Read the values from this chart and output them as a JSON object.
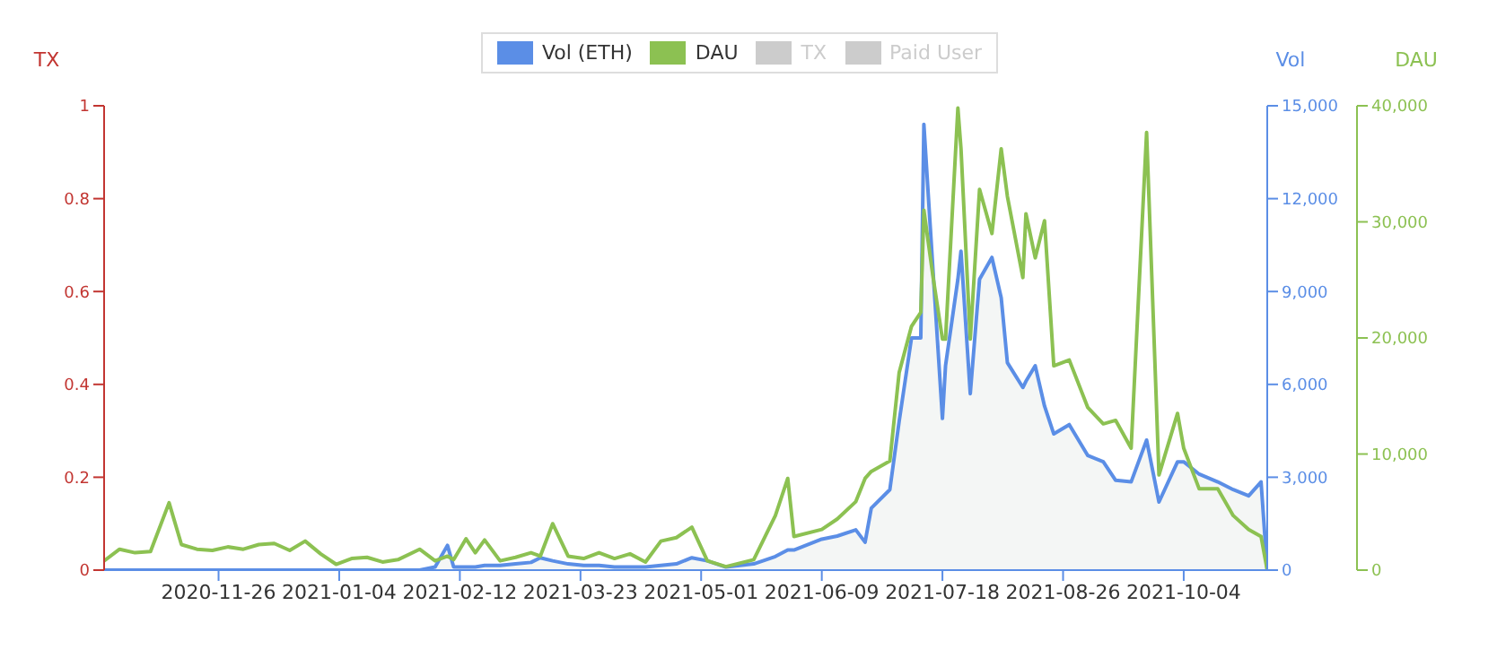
{
  "chart_data": {
    "type": "line",
    "ylabel": "TX",
    "y2label": "Vol",
    "y3label": "DAU",
    "legend": "top",
    "marker": "none",
    "xlim": [
      "2020-10-20",
      "2021-10-31"
    ],
    "xticks": [
      "2020-11-26",
      "2021-01-04",
      "2021-02-12",
      "2021-03-23",
      "2021-05-01",
      "2021-06-09",
      "2021-07-18",
      "2021-08-26",
      "2021-10-04"
    ],
    "ylim": [
      0,
      1
    ],
    "yticks": [
      0,
      0.2,
      0.4,
      0.6,
      0.8,
      1
    ],
    "y2lim": [
      0,
      15000
    ],
    "y2ticks": [
      0,
      {
        "value": 3000,
        "label": "3,000"
      },
      {
        "value": 6000,
        "label": "6,000"
      },
      {
        "value": 9000,
        "label": "9,000"
      },
      {
        "value": 12000,
        "label": "12,000"
      },
      {
        "value": 15000,
        "label": "15,000"
      }
    ],
    "y3lim": [
      0,
      40000
    ],
    "y3ticks": [
      0,
      {
        "value": 10000,
        "label": "10,000"
      },
      {
        "value": 20000,
        "label": "20,000"
      },
      {
        "value": 30000,
        "label": "30,000"
      },
      {
        "value": 40000,
        "label": "40,000"
      }
    ],
    "x": [
      "2020-10-20",
      "2020-10-25",
      "2020-10-30",
      "2020-11-04",
      "2020-11-10",
      "2020-11-14",
      "2020-11-19",
      "2020-11-24",
      "2020-11-29",
      "2020-12-04",
      "2020-12-09",
      "2020-12-14",
      "2020-12-19",
      "2020-12-24",
      "2020-12-29",
      "2021-01-03",
      "2021-01-08",
      "2021-01-13",
      "2021-01-18",
      "2021-01-23",
      "2021-01-30",
      "2021-02-04",
      "2021-02-08",
      "2021-02-10",
      "2021-02-14",
      "2021-02-17",
      "2021-02-20",
      "2021-02-25",
      "2021-03-02",
      "2021-03-07",
      "2021-03-10",
      "2021-03-14",
      "2021-03-19",
      "2021-03-24",
      "2021-03-29",
      "2021-04-03",
      "2021-04-08",
      "2021-04-13",
      "2021-04-18",
      "2021-04-23",
      "2021-04-28",
      "2021-05-03",
      "2021-05-09",
      "2021-05-18",
      "2021-05-25",
      "2021-05-29",
      "2021-05-31",
      "2021-06-09",
      "2021-06-14",
      "2021-06-20",
      "2021-06-23",
      "2021-06-25",
      "2021-07-01",
      "2021-07-04",
      "2021-07-08",
      "2021-07-11",
      "2021-07-12",
      "2021-07-15",
      "2021-07-18",
      "2021-07-19",
      "2021-07-23",
      "2021-07-24",
      "2021-07-27",
      "2021-07-30",
      "2021-08-03",
      "2021-08-06",
      "2021-08-08",
      "2021-08-13",
      "2021-08-14",
      "2021-08-17",
      "2021-08-20",
      "2021-08-23",
      "2021-08-28",
      "2021-09-03",
      "2021-09-08",
      "2021-09-12",
      "2021-09-17",
      "2021-09-22",
      "2021-09-26",
      "2021-10-02",
      "2021-10-04",
      "2021-10-09",
      "2021-10-15",
      "2021-10-20",
      "2021-10-25",
      "2021-10-29",
      "2021-10-31"
    ],
    "series": [
      {
        "name": "Vol (ETH)",
        "type": "area",
        "axis": "y2",
        "color": "#5b8ee6",
        "values": [
          0,
          0,
          0,
          0,
          0,
          0,
          0,
          0,
          0,
          0,
          0,
          0,
          0,
          0,
          0,
          0,
          0,
          0,
          0,
          0,
          0,
          100,
          800,
          100,
          100,
          100,
          150,
          150,
          200,
          250,
          400,
          300,
          200,
          150,
          150,
          100,
          100,
          100,
          150,
          200,
          400,
          300,
          100,
          200,
          440,
          650,
          650,
          1000,
          1100,
          1300,
          900,
          2000,
          2600,
          4800,
          7500,
          7500,
          14400,
          9600,
          4900,
          6600,
          9400,
          10300,
          5700,
          9400,
          10100,
          8800,
          6700,
          5900,
          6100,
          6600,
          5300,
          4400,
          4700,
          3700,
          3500,
          2900,
          2850,
          4200,
          2200,
          3500,
          3500,
          3100,
          2850,
          2600,
          2400,
          2850,
          0
        ]
      },
      {
        "name": "DAU",
        "axis": "y3",
        "color": "#8cc152",
        "values": [
          800,
          1800,
          1500,
          1600,
          5800,
          2200,
          1800,
          1700,
          2000,
          1800,
          2200,
          2300,
          1700,
          2500,
          1400,
          500,
          1000,
          1100,
          700,
          900,
          1800,
          800,
          1200,
          900,
          2700,
          1500,
          2600,
          800,
          1100,
          1500,
          1200,
          4000,
          1200,
          1000,
          1500,
          1000,
          1400,
          700,
          2500,
          2800,
          3700,
          800,
          300,
          900,
          4700,
          7900,
          2900,
          3500,
          4400,
          5900,
          7900,
          8500,
          9400,
          17000,
          21000,
          22200,
          31000,
          25200,
          19900,
          19900,
          39800,
          36300,
          19900,
          32800,
          29000,
          36300,
          32200,
          25200,
          30700,
          26900,
          30100,
          17600,
          18100,
          14000,
          12600,
          12900,
          10500,
          37700,
          8200,
          13500,
          10500,
          7000,
          7000,
          4700,
          3500,
          2900,
          0
        ]
      },
      {
        "name": "TX",
        "axis": "y",
        "color": "#cccccc",
        "values": [
          null,
          null,
          null,
          null,
          null,
          null,
          null,
          null,
          null,
          null,
          null,
          null,
          null,
          null,
          null,
          null,
          null,
          null,
          null,
          null,
          null,
          null,
          null,
          null,
          null,
          null,
          null,
          null,
          null,
          null,
          null,
          null,
          null,
          null,
          null,
          null,
          null,
          null,
          null,
          null,
          null,
          null,
          null,
          null,
          null,
          null,
          null,
          null,
          null,
          null,
          null,
          null,
          null,
          null,
          null,
          null,
          null,
          null,
          null,
          null,
          null,
          null,
          null,
          null,
          null,
          null,
          null,
          null,
          null,
          null,
          null,
          null,
          null,
          null,
          null,
          null,
          null,
          null,
          null,
          null,
          null,
          null,
          null,
          null,
          null,
          null,
          null
        ]
      },
      {
        "name": "Paid User",
        "color": "#cccccc",
        "values": [
          null,
          null,
          null,
          null,
          null,
          null,
          null,
          null,
          null,
          null,
          null,
          null,
          null,
          null,
          null,
          null,
          null,
          null,
          null,
          null,
          null,
          null,
          null,
          null,
          null,
          null,
          null,
          null,
          null,
          null,
          null,
          null,
          null,
          null,
          null,
          null,
          null,
          null,
          null,
          null,
          null,
          null,
          null,
          null,
          null,
          null,
          null,
          null,
          null,
          null,
          null,
          null,
          null,
          null,
          null,
          null,
          null,
          null,
          null,
          null,
          null,
          null,
          null,
          null,
          null,
          null,
          null,
          null,
          null,
          null,
          null,
          null,
          null,
          null,
          null,
          null,
          null,
          null,
          null,
          null,
          null,
          null,
          null,
          null,
          null,
          null,
          null
        ]
      }
    ]
  }
}
